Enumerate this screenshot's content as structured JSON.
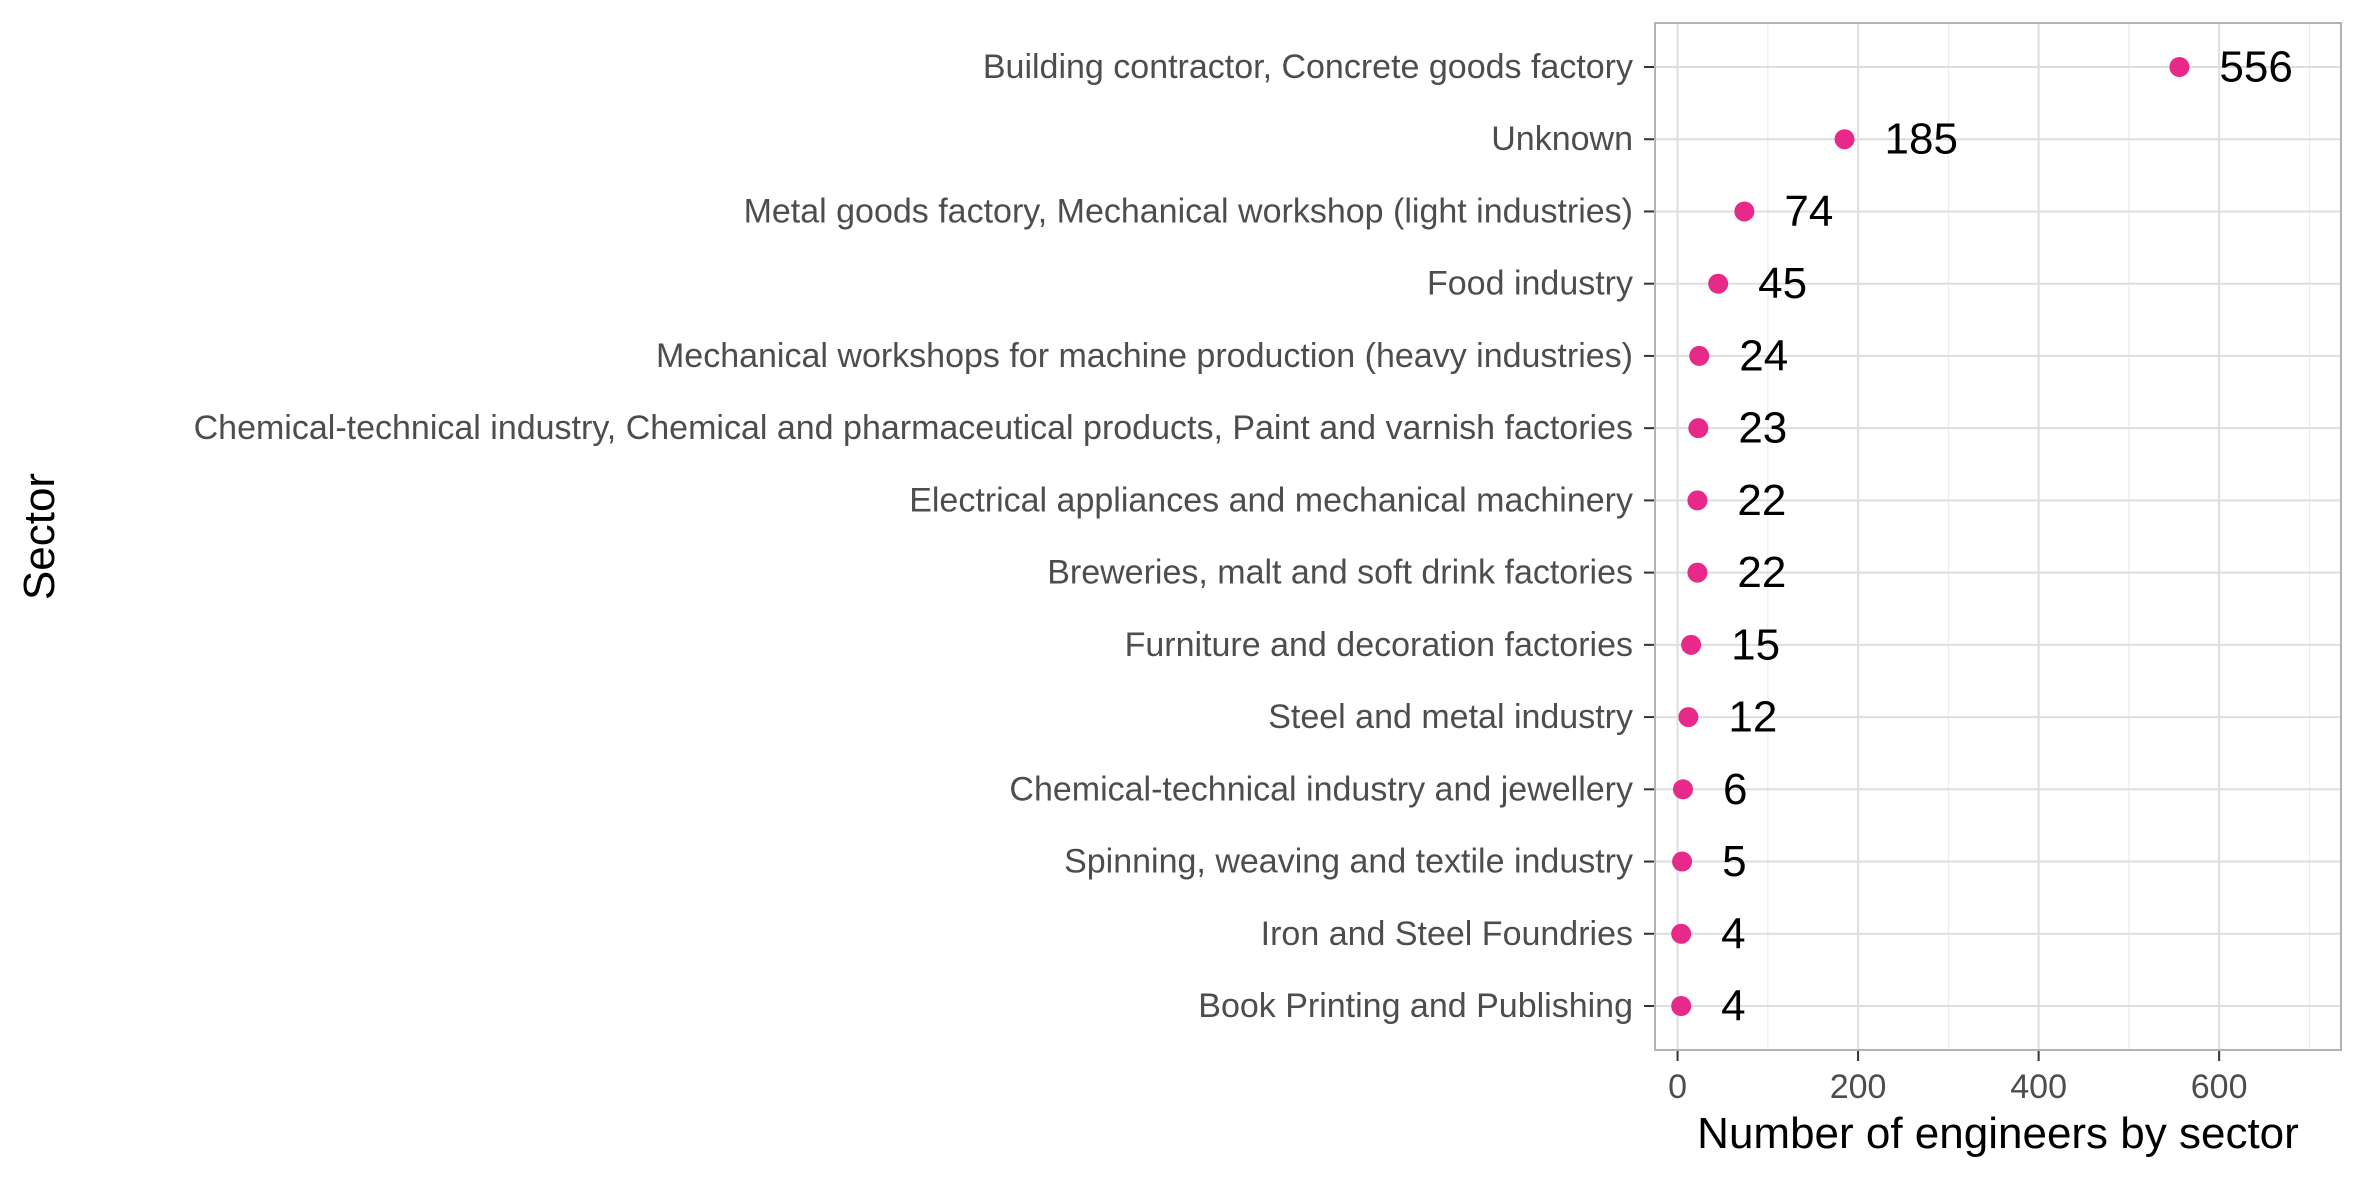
{
  "chart_data": {
    "type": "scatter",
    "xlabel": "Number of engineers by sector",
    "ylabel": "Sector",
    "xlim": [
      -25,
      735
    ],
    "x_ticks": [
      0,
      200,
      400,
      600
    ],
    "x_minor_ticks": [
      100,
      300,
      500,
      700
    ],
    "grid": true,
    "point_color": "#E7298A",
    "categories": [
      "Building contractor, Concrete goods factory",
      "Unknown",
      "Metal goods factory, Mechanical workshop (light industries)",
      "Food industry",
      "Mechanical workshops for machine production (heavy industries)",
      "Chemical-technical industry, Chemical and pharmaceutical products, Paint and varnish factories",
      "Electrical appliances and mechanical machinery",
      "Breweries, malt and soft drink factories",
      "Furniture and decoration factories",
      "Steel and metal industry",
      "Chemical-technical industry and jewellery",
      "Spinning, weaving and textile industry",
      "Iron and Steel Foundries",
      "Book Printing and Publishing"
    ],
    "values": [
      556,
      185,
      74,
      45,
      24,
      23,
      22,
      22,
      15,
      12,
      6,
      5,
      4,
      4
    ]
  }
}
